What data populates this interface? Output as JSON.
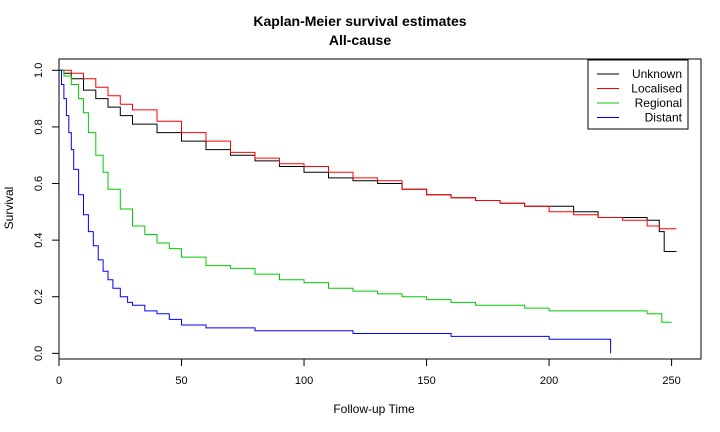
{
  "chart_data": {
    "type": "line",
    "step": true,
    "title": "Kaplan-Meier survival estimates",
    "subtitle": "All-cause",
    "xlabel": "Follow-up Time",
    "ylabel": "Survival",
    "xlim": [
      0,
      262
    ],
    "ylim": [
      -0.02,
      1.04
    ],
    "xticks": [
      0,
      50,
      100,
      150,
      200,
      250
    ],
    "yticks": [
      0.0,
      0.2,
      0.4,
      0.6,
      0.8,
      1.0
    ],
    "xtick_labels": [
      "0",
      "50",
      "100",
      "150",
      "200",
      "250"
    ],
    "ytick_labels": [
      "0.0",
      "0.2",
      "0.4",
      "0.6",
      "0.8",
      "1.0"
    ],
    "grid": false,
    "legend_position": "top-right",
    "series": [
      {
        "name": "Unknown",
        "color": "#000000",
        "x": [
          0,
          2,
          5,
          10,
          15,
          20,
          25,
          30,
          40,
          50,
          60,
          70,
          80,
          90,
          100,
          110,
          120,
          130,
          140,
          150,
          160,
          170,
          180,
          190,
          200,
          210,
          220,
          230,
          240,
          245,
          247,
          252
        ],
        "y": [
          1.0,
          0.99,
          0.97,
          0.93,
          0.9,
          0.87,
          0.84,
          0.81,
          0.78,
          0.75,
          0.72,
          0.7,
          0.68,
          0.66,
          0.64,
          0.62,
          0.61,
          0.6,
          0.58,
          0.56,
          0.55,
          0.54,
          0.53,
          0.52,
          0.52,
          0.5,
          0.48,
          0.48,
          0.47,
          0.43,
          0.36,
          0.36
        ]
      },
      {
        "name": "Localised",
        "color": "#ff0000",
        "x": [
          0,
          2,
          5,
          10,
          15,
          20,
          25,
          30,
          40,
          50,
          60,
          70,
          80,
          90,
          100,
          110,
          120,
          130,
          140,
          150,
          160,
          170,
          180,
          190,
          200,
          210,
          220,
          230,
          240,
          245,
          252
        ],
        "y": [
          1.0,
          1.0,
          0.99,
          0.97,
          0.94,
          0.91,
          0.88,
          0.86,
          0.82,
          0.78,
          0.75,
          0.71,
          0.69,
          0.67,
          0.66,
          0.64,
          0.62,
          0.61,
          0.58,
          0.56,
          0.55,
          0.54,
          0.53,
          0.52,
          0.5,
          0.49,
          0.48,
          0.47,
          0.45,
          0.44,
          0.44
        ]
      },
      {
        "name": "Regional",
        "color": "#00cd00",
        "x": [
          0,
          2,
          5,
          8,
          10,
          12,
          15,
          18,
          20,
          25,
          30,
          35,
          40,
          45,
          50,
          60,
          70,
          80,
          90,
          100,
          110,
          120,
          130,
          140,
          150,
          160,
          170,
          180,
          190,
          200,
          210,
          220,
          230,
          240,
          246,
          250
        ],
        "y": [
          1.0,
          0.98,
          0.95,
          0.9,
          0.85,
          0.78,
          0.7,
          0.64,
          0.58,
          0.51,
          0.45,
          0.42,
          0.39,
          0.37,
          0.34,
          0.31,
          0.3,
          0.28,
          0.26,
          0.25,
          0.23,
          0.22,
          0.21,
          0.2,
          0.19,
          0.18,
          0.17,
          0.17,
          0.16,
          0.15,
          0.15,
          0.15,
          0.15,
          0.14,
          0.11,
          0.11
        ]
      },
      {
        "name": "Distant",
        "color": "#0000ff",
        "x": [
          0,
          1,
          2,
          3,
          4,
          5,
          6,
          8,
          10,
          12,
          14,
          16,
          18,
          20,
          22,
          25,
          28,
          30,
          35,
          40,
          45,
          50,
          55,
          60,
          70,
          80,
          90,
          100,
          120,
          140,
          160,
          180,
          200,
          210,
          220,
          225,
          225.1
        ],
        "y": [
          1.0,
          0.95,
          0.9,
          0.84,
          0.78,
          0.72,
          0.65,
          0.56,
          0.49,
          0.43,
          0.38,
          0.33,
          0.29,
          0.26,
          0.23,
          0.2,
          0.18,
          0.17,
          0.15,
          0.14,
          0.12,
          0.1,
          0.1,
          0.09,
          0.09,
          0.08,
          0.08,
          0.08,
          0.07,
          0.07,
          0.06,
          0.06,
          0.05,
          0.05,
          0.05,
          0.05,
          0.0
        ]
      }
    ]
  }
}
